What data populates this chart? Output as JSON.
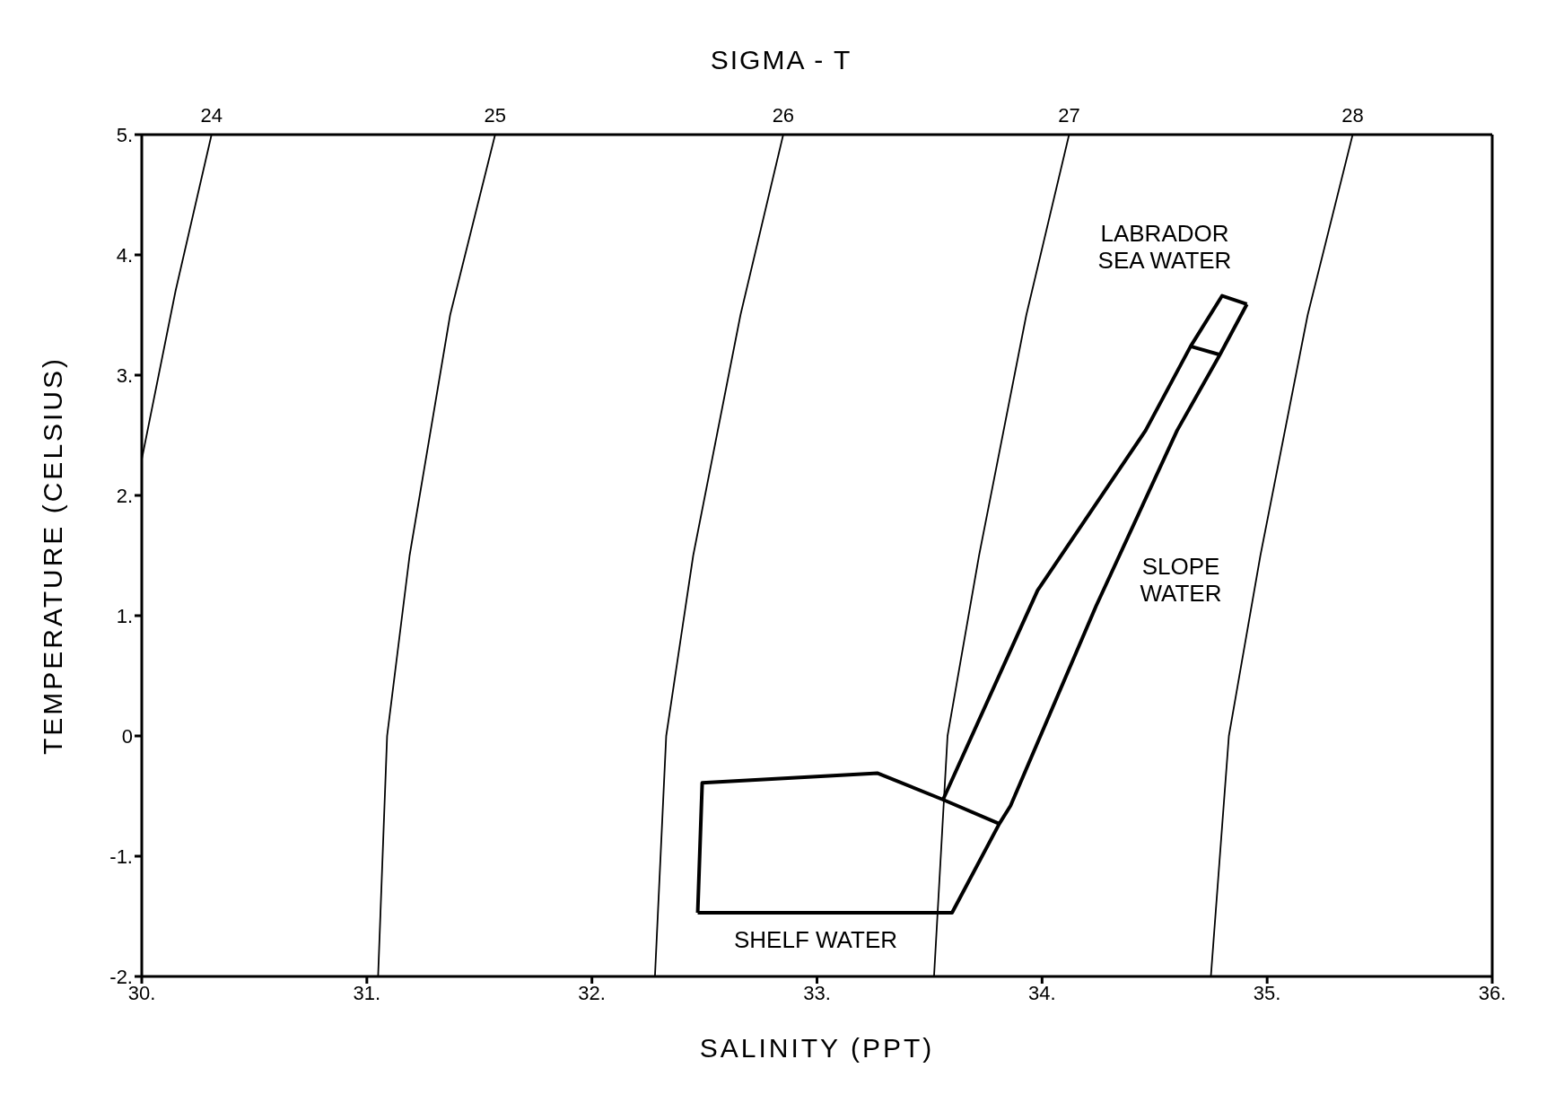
{
  "chart_data": {
    "type": "line",
    "title": "SIGMA - T",
    "xlabel": "SALINITY (PPT)",
    "ylabel": "TEMPERATURE (CELSIUS)",
    "xlim": [
      30,
      36
    ],
    "xticks": [
      {
        "value": 30,
        "label": "30."
      },
      {
        "value": 31,
        "label": "31."
      },
      {
        "value": 32,
        "label": "32."
      },
      {
        "value": 33,
        "label": "33."
      },
      {
        "value": 34,
        "label": "34."
      },
      {
        "value": 35,
        "label": "35."
      },
      {
        "value": 36,
        "label": "36."
      }
    ],
    "ylim": [
      -2,
      5
    ],
    "yticks": [
      {
        "value": -2,
        "label": "-2."
      },
      {
        "value": -1,
        "label": "-1."
      },
      0,
      {
        "value": 1,
        "label": "1."
      },
      {
        "value": 2,
        "label": "2."
      },
      {
        "value": 3,
        "label": "3."
      },
      {
        "value": 4,
        "label": "4."
      },
      {
        "value": 5,
        "label": "5."
      }
    ],
    "marker": "none",
    "grid": false,
    "legend": false,
    "series": [
      {
        "name": "24",
        "color": "#000000",
        "x": [
          30.31,
          30.15,
          30.0
        ],
        "values": [
          5,
          3.7,
          2.3
        ]
      },
      {
        "name": "25",
        "color": "#000000",
        "x": [
          31.57,
          31.37,
          31.19,
          31.09,
          31.05
        ],
        "values": [
          5,
          3.5,
          1.5,
          0,
          -2
        ]
      },
      {
        "name": "26",
        "color": "#000000",
        "x": [
          32.85,
          32.66,
          32.45,
          32.33,
          32.28
        ],
        "values": [
          5,
          3.5,
          1.5,
          0,
          -2
        ]
      },
      {
        "name": "27",
        "color": "#000000",
        "x": [
          34.12,
          33.93,
          33.72,
          33.58,
          33.52
        ],
        "values": [
          5,
          3.5,
          1.5,
          0,
          -2
        ]
      },
      {
        "name": "28",
        "color": "#000000",
        "x": [
          35.38,
          35.18,
          34.97,
          34.83,
          34.75
        ],
        "values": [
          5,
          3.5,
          1.5,
          0,
          -2
        ]
      },
      {
        "color": "#000000",
        "x": [
          32.47,
          32.49,
          33.27,
          33.56,
          33.98,
          34.46,
          34.66,
          34.8,
          34.91
        ],
        "values": [
          -1.47,
          -0.39,
          -0.31,
          -0.53,
          1.21,
          2.54,
          3.24,
          3.66,
          3.59
        ]
      },
      {
        "color": "#000000",
        "x": [
          32.47,
          33.6,
          33.81,
          33.86,
          34.24,
          34.6,
          34.79,
          34.91
        ],
        "values": [
          -1.47,
          -1.47,
          -0.73,
          -0.58,
          1.08,
          2.54,
          3.17,
          3.59
        ]
      },
      {
        "color": "#000000",
        "x": [
          33.56,
          33.81
        ],
        "values": [
          -0.53,
          -0.73
        ]
      },
      {
        "color": "#000000",
        "x": [
          34.66,
          34.79
        ],
        "values": [
          3.24,
          3.17
        ]
      }
    ],
    "annotations": [
      "LABRADOR SEA WATER",
      "SLOPE WATER",
      "SHELF WATER"
    ]
  }
}
